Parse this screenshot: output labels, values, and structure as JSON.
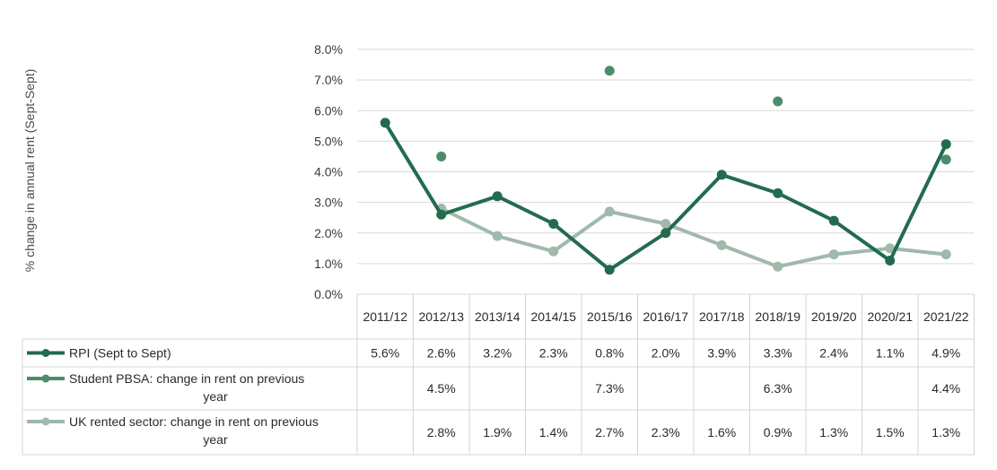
{
  "chart_data": {
    "type": "line",
    "title": "",
    "ylabel": "% change in annual rent (Sept-Sept)",
    "xlabel": "",
    "ylim": [
      0,
      8
    ],
    "yticks": [
      0,
      1,
      2,
      3,
      4,
      5,
      6,
      7,
      8
    ],
    "ytick_labels": [
      "0.0%",
      "1.0%",
      "2.0%",
      "3.0%",
      "4.0%",
      "5.0%",
      "6.0%",
      "7.0%",
      "8.0%"
    ],
    "grid": true,
    "legend": "data-table-below",
    "categories": [
      "2011/12",
      "2012/13",
      "2013/14",
      "2014/15",
      "2015/16",
      "2016/17",
      "2017/18",
      "2018/19",
      "2019/20",
      "2020/21",
      "2021/22"
    ],
    "series": [
      {
        "name": "RPI (Sept to Sept)",
        "color": "#236b4e",
        "style": "line-markers",
        "values": [
          5.6,
          2.6,
          3.2,
          2.3,
          0.8,
          2.0,
          3.9,
          3.3,
          2.4,
          1.1,
          4.9
        ],
        "labels": [
          "5.6%",
          "2.6%",
          "3.2%",
          "2.3%",
          "0.8%",
          "2.0%",
          "3.9%",
          "3.3%",
          "2.4%",
          "1.1%",
          "4.9%"
        ]
      },
      {
        "name": "Student PBSA: change in rent on previous year",
        "color": "#4b8c6b",
        "style": "markers",
        "values": [
          null,
          4.5,
          null,
          null,
          7.3,
          null,
          null,
          6.3,
          null,
          null,
          4.4
        ],
        "labels": [
          "",
          "4.5%",
          "",
          "",
          "7.3%",
          "",
          "",
          "6.3%",
          "",
          "",
          "4.4%"
        ]
      },
      {
        "name": "UK rented sector: change in rent on previous year",
        "color": "#9fb9ab",
        "style": "line-markers",
        "values": [
          null,
          2.8,
          1.9,
          1.4,
          2.7,
          2.3,
          1.6,
          0.9,
          1.3,
          1.5,
          1.3
        ],
        "labels": [
          "",
          "2.8%",
          "1.9%",
          "1.4%",
          "2.7%",
          "2.3%",
          "1.6%",
          "0.9%",
          "1.3%",
          "1.5%",
          "1.3%"
        ]
      }
    ]
  }
}
